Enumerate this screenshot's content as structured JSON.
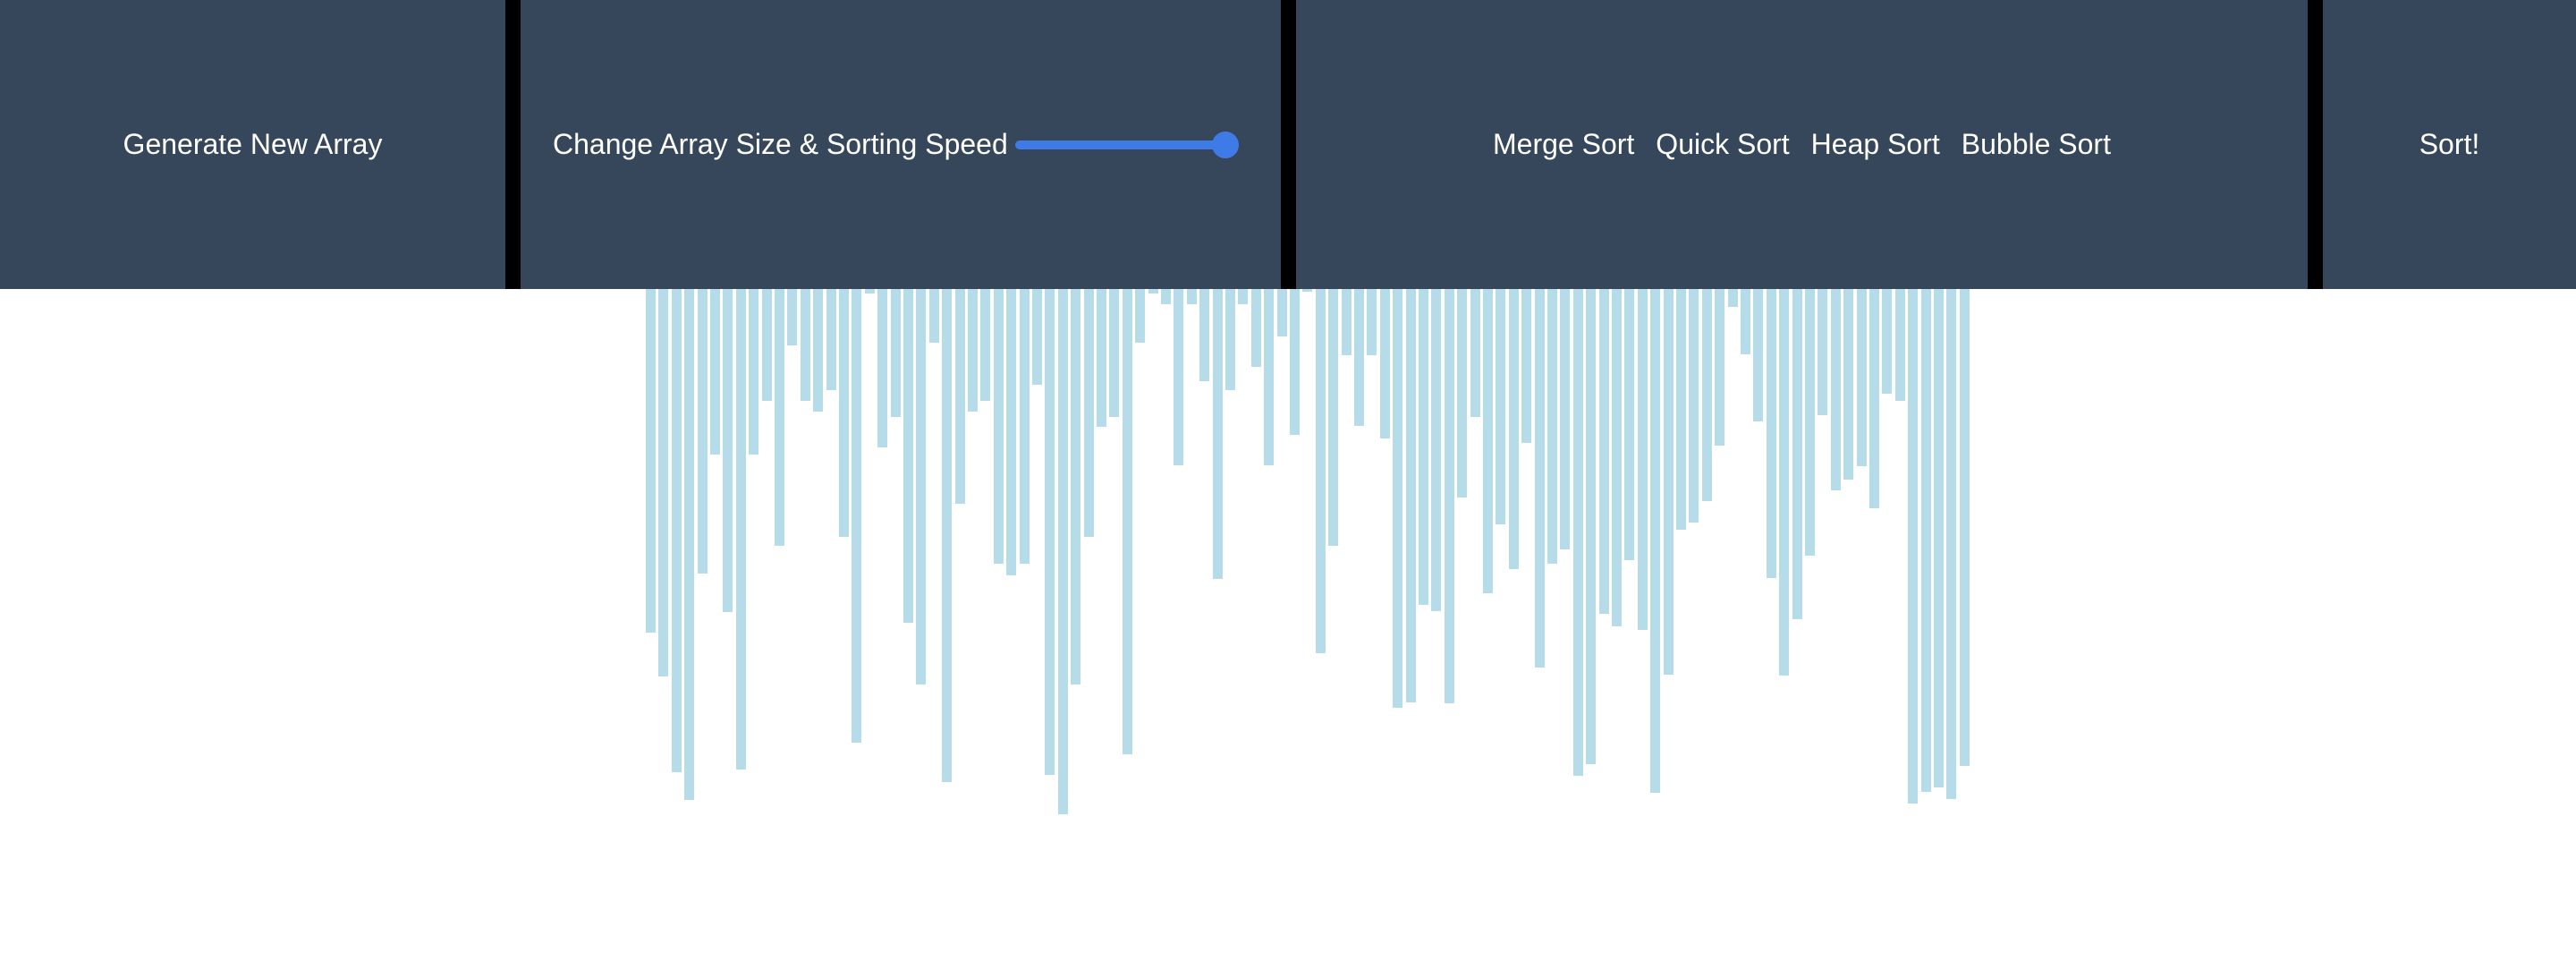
{
  "toolbar": {
    "generate_label": "Generate New Array",
    "size_speed_label": "Change Array Size & Sorting Speed",
    "slider_value_fraction": 1.0,
    "algorithms": [
      "Merge Sort",
      "Quick Sort",
      "Heap Sort",
      "Bubble Sort"
    ],
    "sort_label": "Sort!"
  },
  "colors": {
    "panel_bg": "#36475c",
    "divider": "#000000",
    "text": "#ffffff",
    "slider_accent": "#3f7be6",
    "bar_color": "#add8e6"
  },
  "array": {
    "values": [
      384,
      433,
      540,
      571,
      318,
      185,
      361,
      537,
      185,
      125,
      287,
      63,
      125,
      137,
      113,
      277,
      507,
      5,
      177,
      143,
      373,
      442,
      60,
      551,
      240,
      137,
      125,
      307,
      320,
      307,
      107,
      543,
      587,
      442,
      277,
      154,
      143,
      520,
      60,
      5,
      17,
      197,
      17,
      103,
      324,
      113,
      17,
      87,
      197,
      53,
      163,
      3,
      407,
      287,
      74,
      153,
      74,
      167,
      468,
      462,
      353,
      360,
      463,
      233,
      143,
      340,
      263,
      313,
      172,
      423,
      307,
      291,
      544,
      531,
      363,
      377,
      303,
      381,
      563,
      431,
      269,
      261,
      237,
      175,
      20,
      73,
      148,
      323,
      432,
      369,
      298,
      141,
      225,
      213,
      198,
      245,
      117,
      125,
      575,
      562,
      557,
      570,
      533
    ]
  }
}
